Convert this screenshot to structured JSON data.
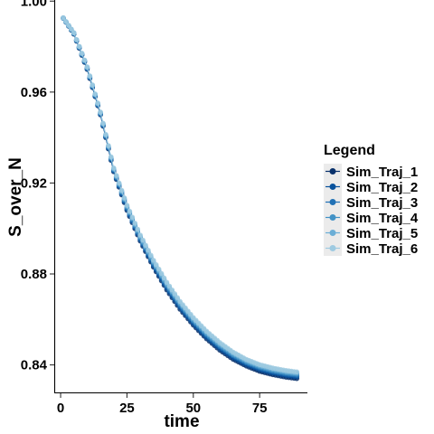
{
  "chart_data": {
    "type": "line",
    "title": "",
    "xlabel": "time",
    "ylabel": "S_over_N",
    "xlim": [
      -2.4,
      93
    ],
    "ylim": [
      0.8275,
      1.0005
    ],
    "x_ticks": [
      0,
      25,
      50,
      75
    ],
    "y_ticks": [
      0.84,
      0.88,
      0.92,
      0.96,
      1.0
    ],
    "y_tick_labels": [
      "0.84",
      "0.88",
      "0.92",
      "0.96",
      "1.00"
    ],
    "markers": true,
    "grid": false,
    "legend": {
      "title": "Legend",
      "position": "right"
    },
    "x": [
      1,
      5,
      10,
      15,
      20,
      25,
      30,
      35,
      40,
      45,
      50,
      55,
      60,
      65,
      70,
      75,
      80,
      85,
      89
    ],
    "series": [
      {
        "name": "Sim_Traj_1",
        "color": "#08306b",
        "values": [
          0.9925,
          0.9855,
          0.97,
          0.95,
          0.925,
          0.908,
          0.8945,
          0.883,
          0.873,
          0.8645,
          0.8575,
          0.8515,
          0.8465,
          0.8425,
          0.8395,
          0.8372,
          0.8357,
          0.8346,
          0.834
        ]
      },
      {
        "name": "Sim_Traj_2",
        "color": "#08519c",
        "values": [
          0.9925,
          0.9857,
          0.9703,
          0.9503,
          0.9254,
          0.9085,
          0.8951,
          0.8837,
          0.8738,
          0.8653,
          0.8583,
          0.8523,
          0.8473,
          0.8433,
          0.8403,
          0.838,
          0.8365,
          0.8354,
          0.8348
        ]
      },
      {
        "name": "Sim_Traj_3",
        "color": "#2171b5",
        "values": [
          0.9925,
          0.9858,
          0.9705,
          0.9505,
          0.9257,
          0.909,
          0.8956,
          0.8843,
          0.8745,
          0.866,
          0.859,
          0.853,
          0.848,
          0.844,
          0.8409,
          0.8386,
          0.8371,
          0.836,
          0.8354
        ]
      },
      {
        "name": "Sim_Traj_4",
        "color": "#4292c6",
        "values": [
          0.9926,
          0.9859,
          0.9707,
          0.9508,
          0.926,
          0.9094,
          0.8961,
          0.8849,
          0.8751,
          0.8667,
          0.8596,
          0.8536,
          0.8486,
          0.8445,
          0.8414,
          0.8391,
          0.8376,
          0.8365,
          0.8359
        ]
      },
      {
        "name": "Sim_Traj_5",
        "color": "#6baed6",
        "values": [
          0.9926,
          0.986,
          0.9709,
          0.951,
          0.9263,
          0.9098,
          0.8966,
          0.8854,
          0.8757,
          0.8673,
          0.8602,
          0.8542,
          0.8492,
          0.8451,
          0.8419,
          0.8396,
          0.8381,
          0.837,
          0.8364
        ]
      },
      {
        "name": "Sim_Traj_6",
        "color": "#9ecae1",
        "values": [
          0.9926,
          0.9861,
          0.9711,
          0.9512,
          0.9266,
          0.9102,
          0.8971,
          0.886,
          0.8763,
          0.8679,
          0.8608,
          0.8548,
          0.8498,
          0.8456,
          0.8424,
          0.8401,
          0.8386,
          0.8375,
          0.8369
        ]
      }
    ]
  }
}
